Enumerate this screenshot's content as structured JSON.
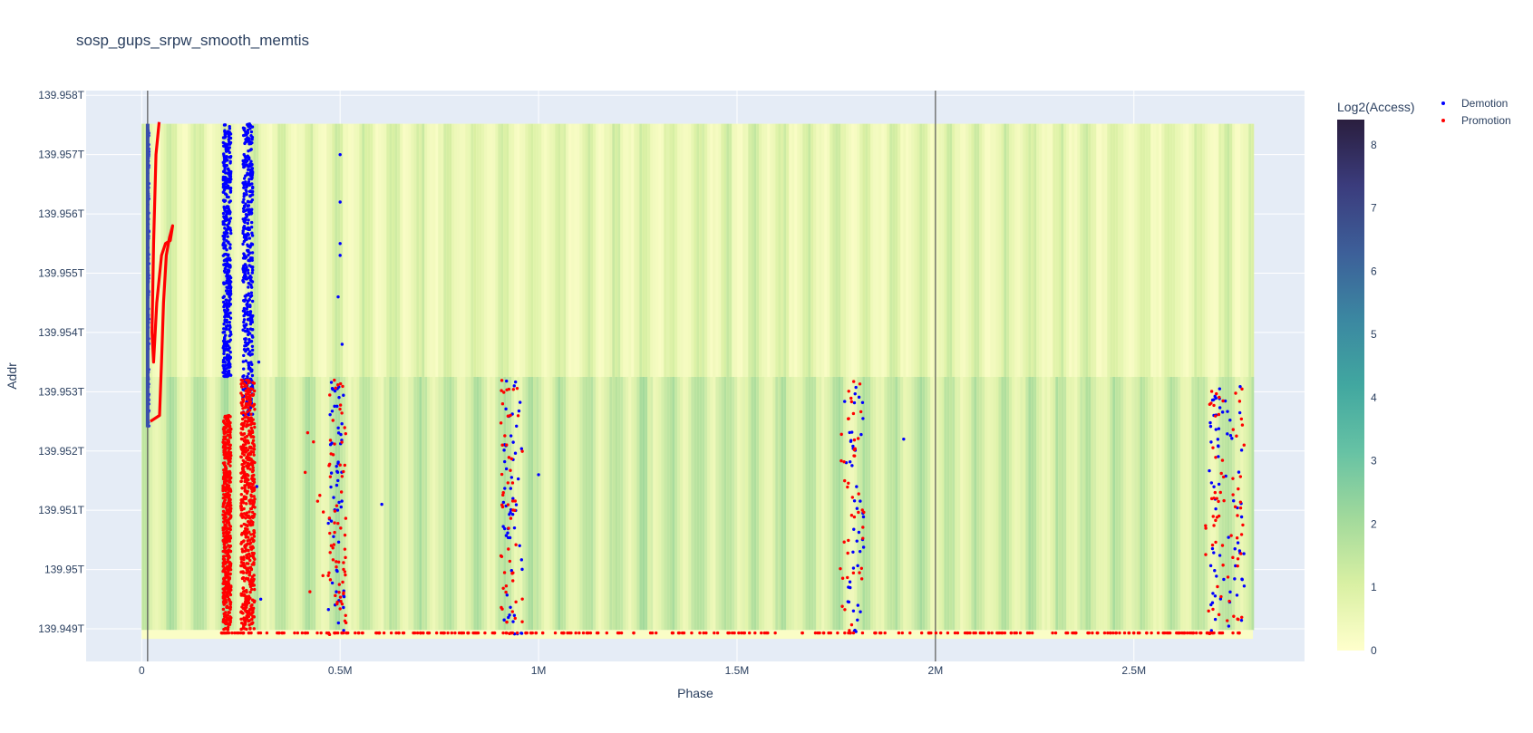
{
  "chart_data": {
    "type": "scatter",
    "title": "sosp_gups_srpw_smooth_memtis",
    "xlabel": "Phase",
    "ylabel": "Addr",
    "xlim": [
      -140000,
      2930000
    ],
    "ylim": [
      139.94845,
      139.95808
    ],
    "x_ticks": [
      {
        "value": 0,
        "label": "0"
      },
      {
        "value": 500000,
        "label": "0.5M"
      },
      {
        "value": 1000000,
        "label": "1M"
      },
      {
        "value": 1500000,
        "label": "1.5M"
      },
      {
        "value": 2000000,
        "label": "2M"
      },
      {
        "value": 2500000,
        "label": "2.5M"
      }
    ],
    "y_ticks": [
      {
        "value": 139.949,
        "label": "139.949T"
      },
      {
        "value": 139.95,
        "label": "139.95T"
      },
      {
        "value": 139.951,
        "label": "139.951T"
      },
      {
        "value": 139.952,
        "label": "139.952T"
      },
      {
        "value": 139.953,
        "label": "139.953T"
      },
      {
        "value": 139.954,
        "label": "139.954T"
      },
      {
        "value": 139.955,
        "label": "139.955T"
      },
      {
        "value": 139.956,
        "label": "139.956T"
      },
      {
        "value": 139.957,
        "label": "139.957T"
      },
      {
        "value": 139.958,
        "label": "139.958T"
      }
    ],
    "vertical_lines": [
      15000,
      2000000
    ],
    "heatmap": {
      "name": "Log2(Access)",
      "x_range": [
        0,
        2800000
      ],
      "regions": [
        {
          "y_range": [
            139.95325,
            139.95752
          ],
          "level": 1.2,
          "description": "upper region, lighter access"
        },
        {
          "y_range": [
            139.94898,
            139.95325
          ],
          "level": 1.8,
          "description": "lower region, denser access"
        },
        {
          "y_range": [
            139.94883,
            139.94898
          ],
          "level": 0.2,
          "description": "bottom strip"
        }
      ],
      "stripe_period": 70000
    },
    "colorbar": {
      "title": "Log2(Access)",
      "min": 0,
      "max": 8.4,
      "ticks": [
        0,
        1,
        2,
        3,
        4,
        5,
        6,
        7,
        8
      ],
      "colors": [
        "#ffffcc",
        "#d9f0a3",
        "#a1d99b",
        "#66c2a4",
        "#41a7a0",
        "#3b87a1",
        "#3d5f99",
        "#3b3c7d",
        "#2a1e3e"
      ]
    },
    "series": [
      {
        "name": "Demotion",
        "color": "#0000ff",
        "clusters": [
          {
            "x_range": [
              205000,
              225000
            ],
            "y_range": [
              139.95325,
              139.95752
            ],
            "count": 420
          },
          {
            "x_range": [
              255000,
              280000
            ],
            "y_range": [
              139.9526,
              139.95752
            ],
            "count": 420
          },
          {
            "x_range": [
              15000,
              18000
            ],
            "y_range": [
              139.9524,
              139.95752
            ],
            "count": 110
          },
          {
            "x_range": [
              470000,
              510000
            ],
            "y_range": [
              139.9489,
              139.9532
            ],
            "count": 55
          },
          {
            "x_range": [
              910000,
              960000
            ],
            "y_range": [
              139.9489,
              139.9532
            ],
            "count": 55
          },
          {
            "x_range": [
              1770000,
              1820000
            ],
            "y_range": [
              139.9489,
              139.9532
            ],
            "count": 45
          },
          {
            "x_range": [
              2690000,
              2780000
            ],
            "y_range": [
              139.9489,
              139.9531
            ],
            "count": 70
          }
        ],
        "sparse_points": [
          {
            "x": 500000,
            "y": 139.957
          },
          {
            "x": 500000,
            "y": 139.9562
          },
          {
            "x": 500000,
            "y": 139.9555
          },
          {
            "x": 500000,
            "y": 139.9553
          },
          {
            "x": 495000,
            "y": 139.9546
          },
          {
            "x": 505000,
            "y": 139.9538
          },
          {
            "x": 1000000,
            "y": 139.9516
          },
          {
            "x": 605000,
            "y": 139.9511
          },
          {
            "x": 1920000,
            "y": 139.9522
          },
          {
            "x": 295000,
            "y": 139.9535
          },
          {
            "x": 290000,
            "y": 139.9514
          },
          {
            "x": 300000,
            "y": 139.9495
          }
        ]
      },
      {
        "name": "Promotion",
        "color": "#ff0000",
        "clusters": [
          {
            "x_range": [
              205000,
              225000
            ],
            "y_range": [
              139.94898,
              139.9526
            ],
            "count": 520
          },
          {
            "x_range": [
              250000,
              285000
            ],
            "y_range": [
              139.94898,
              139.9532
            ],
            "count": 560
          },
          {
            "x_range": [
              470000,
              515000
            ],
            "y_range": [
              139.9489,
              139.9532
            ],
            "count": 65
          },
          {
            "x_range": [
              905000,
              960000
            ],
            "y_range": [
              139.9489,
              139.9532
            ],
            "count": 55
          },
          {
            "x_range": [
              1760000,
              1820000
            ],
            "y_range": [
              139.9489,
              139.9532
            ],
            "count": 45
          },
          {
            "x_range": [
              2680000,
              2780000
            ],
            "y_range": [
              139.9489,
              139.9531
            ],
            "count": 70
          },
          {
            "x_range": [
              400000,
              480000
            ],
            "y_range": [
              139.9489,
              139.9532
            ],
            "count": 12
          }
        ],
        "curve": [
          {
            "x": 22000,
            "y": 139.9525
          },
          {
            "x": 45000,
            "y": 139.9526
          },
          {
            "x": 50000,
            "y": 139.9535
          },
          {
            "x": 55000,
            "y": 139.9545
          },
          {
            "x": 62000,
            "y": 139.9553
          },
          {
            "x": 70000,
            "y": 139.9556
          },
          {
            "x": 78000,
            "y": 139.9558
          },
          {
            "x": 72000,
            "y": 139.95555
          },
          {
            "x": 60000,
            "y": 139.9555
          },
          {
            "x": 50000,
            "y": 139.9553
          },
          {
            "x": 38000,
            "y": 139.9545
          },
          {
            "x": 30000,
            "y": 139.9535
          },
          {
            "x": 26000,
            "y": 139.954
          },
          {
            "x": 30000,
            "y": 139.9555
          },
          {
            "x": 36000,
            "y": 139.957
          },
          {
            "x": 44000,
            "y": 139.95755
          }
        ],
        "baseline": {
          "y": 139.94893,
          "x_range": [
            180000,
            2790000
          ],
          "count": 300
        }
      }
    ],
    "legend": {
      "position": "top-right",
      "entries": [
        "Demotion",
        "Promotion"
      ]
    }
  }
}
